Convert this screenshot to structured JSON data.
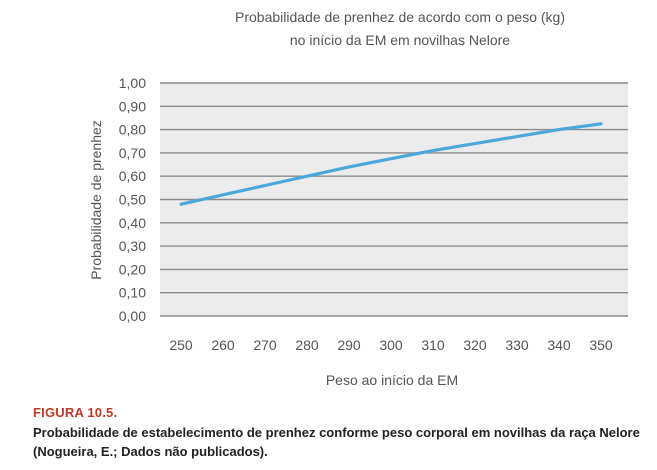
{
  "chart_data": {
    "type": "line",
    "title_lines": [
      "Probabilidade de prenhez de acordo com o peso (kg)",
      "no início da EM em novilhas Nelore"
    ],
    "xlabel": "Peso ao início da EM",
    "ylabel": "Probabilidade de prenhez",
    "x_ticks": [
      "250",
      "260",
      "270",
      "280",
      "290",
      "300",
      "310",
      "320",
      "330",
      "340",
      "350"
    ],
    "y_ticks": [
      "0,00",
      "0,10",
      "0,20",
      "0,30",
      "0,40",
      "0,50",
      "0,60",
      "0,70",
      "0,80",
      "0,90",
      "1,00"
    ],
    "xlim": [
      250,
      350
    ],
    "ylim": [
      0,
      1
    ],
    "grid": true,
    "series": [
      {
        "color": "#4aa8dc",
        "x": [
          250,
          260,
          270,
          280,
          290,
          300,
          310,
          320,
          330,
          340,
          350
        ],
        "y": [
          0.48,
          0.52,
          0.56,
          0.6,
          0.64,
          0.675,
          0.71,
          0.74,
          0.77,
          0.8,
          0.825
        ]
      }
    ]
  },
  "figure": {
    "label": "FIGURA 10.5.",
    "caption": "Probabilidade de estabelecimento de prenhez conforme peso corporal em novilhas da raça Nelore (Nogueira, E.; Dados não publicados)."
  },
  "colors": {
    "grid": "#8a8a8a",
    "plot_bg": "#ececec",
    "figure_label": "#c0392b"
  }
}
